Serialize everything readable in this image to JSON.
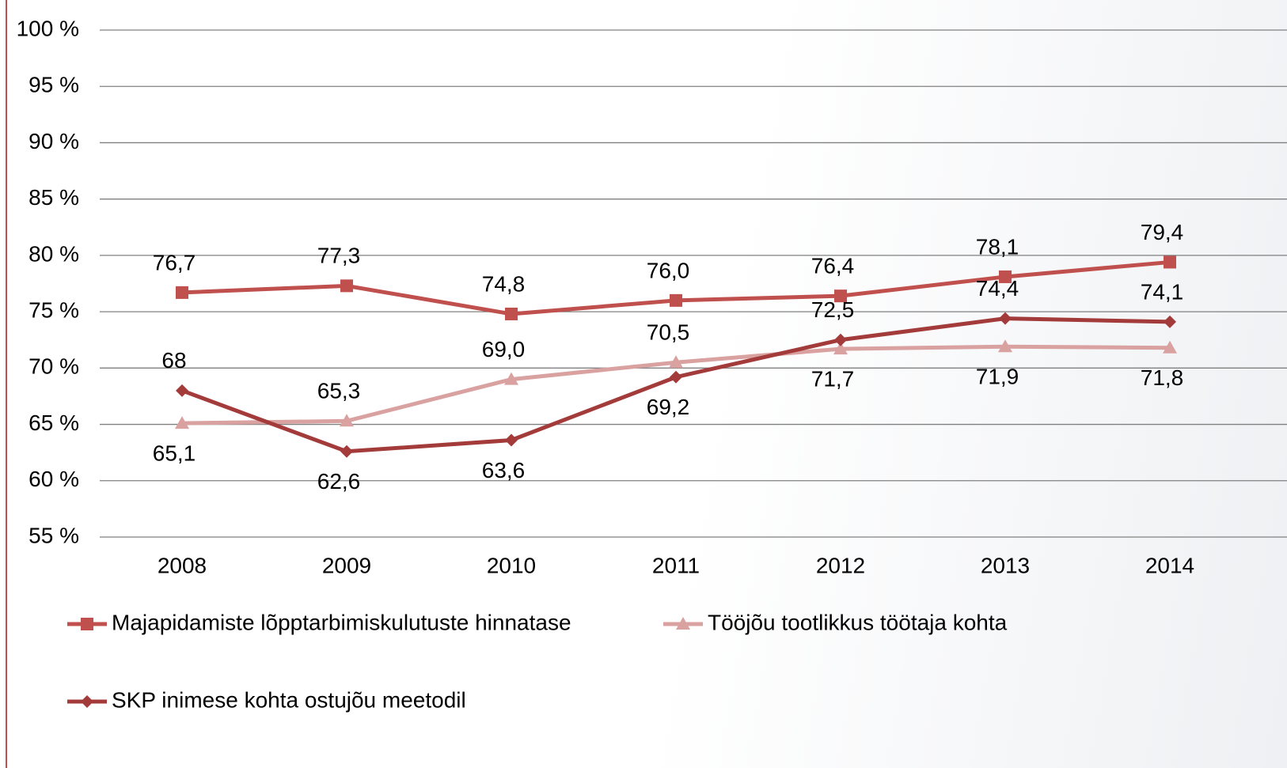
{
  "chart_data": {
    "type": "line",
    "categories": [
      "2008",
      "2009",
      "2010",
      "2011",
      "2012",
      "2013",
      "2014"
    ],
    "series": [
      {
        "name": "Majapidamiste lõpptarbimiskulutuste hinnatase",
        "color": "#c0504d",
        "marker": "square",
        "values": [
          76.7,
          77.3,
          74.8,
          76.0,
          76.4,
          78.1,
          79.4
        ],
        "value_labels": [
          "76,7",
          "77,3",
          "74,8",
          "76,0",
          "76,4",
          "78,1",
          "79,4"
        ]
      },
      {
        "name": "Tööjõu tootlikkus töötaja kohta",
        "color": "#d9a1a0",
        "marker": "triangle",
        "values": [
          65.1,
          65.3,
          69.0,
          70.5,
          71.7,
          71.9,
          71.8
        ],
        "value_labels": [
          "65,1",
          "65,3",
          "69,0",
          "70,5",
          "71,7",
          "71,9",
          "71,8"
        ]
      },
      {
        "name": "SKP inimese kohta ostujõu meetodil",
        "color": "#a33b3b",
        "marker": "diamond",
        "values": [
          68,
          62.6,
          63.6,
          69.2,
          72.5,
          74.4,
          74.1
        ],
        "value_labels": [
          "68",
          "62,6",
          "63,6",
          "69,2",
          "72,5",
          "74,4",
          "74,1"
        ]
      }
    ],
    "ylim": [
      55,
      100
    ],
    "yticks": [
      {
        "value": 55,
        "label": "55 %"
      },
      {
        "value": 60,
        "label": "60 %"
      },
      {
        "value": 65,
        "label": "65 %"
      },
      {
        "value": 70,
        "label": "70 %"
      },
      {
        "value": 75,
        "label": "75 %"
      },
      {
        "value": 80,
        "label": "80 %"
      },
      {
        "value": 85,
        "label": "85 %"
      },
      {
        "value": 90,
        "label": "90 %"
      },
      {
        "value": 95,
        "label": "95 %"
      },
      {
        "value": 100,
        "label": "100 %"
      }
    ],
    "grid": true,
    "legend": "bottom"
  }
}
